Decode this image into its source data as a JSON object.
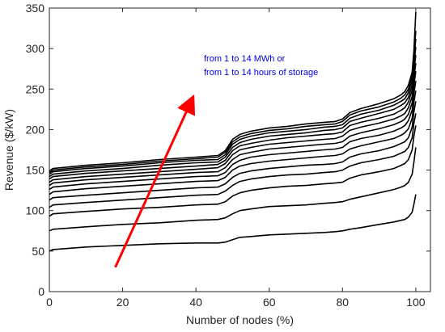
{
  "chart_data": {
    "type": "line",
    "title": "",
    "xlabel": "Number of nodes (%)",
    "ylabel": "Revenue ($/kW)",
    "xlim": [
      0,
      104
    ],
    "ylim": [
      0,
      350
    ],
    "xticks": [
      0,
      20,
      40,
      60,
      80,
      100
    ],
    "yticks": [
      0,
      50,
      100,
      150,
      200,
      250,
      300,
      350
    ],
    "grid": false,
    "legend": "none",
    "line_color": "#000000",
    "x": [
      0,
      1,
      10,
      20,
      30,
      40,
      46,
      48,
      50,
      52,
      55,
      60,
      65,
      70,
      75,
      78,
      80,
      82,
      85,
      90,
      94,
      96,
      97,
      98,
      99,
      99.5,
      100
    ],
    "series": [
      {
        "values": [
          50,
          52,
          55,
          57,
          59,
          60,
          60,
          61,
          64,
          67,
          68,
          70,
          71,
          72,
          73,
          74,
          75,
          77,
          79,
          83,
          86,
          88,
          89,
          92,
          98,
          108,
          120
        ]
      },
      {
        "values": [
          75,
          77,
          80,
          83,
          85,
          88,
          89,
          91,
          96,
          100,
          102,
          105,
          106,
          107,
          109,
          110,
          111,
          114,
          117,
          122,
          126,
          129,
          131,
          135,
          145,
          160,
          178
        ]
      },
      {
        "values": [
          93,
          96,
          99,
          102,
          104,
          107,
          108,
          111,
          118,
          122,
          125,
          128,
          130,
          131,
          133,
          134,
          135,
          140,
          144,
          148,
          152,
          156,
          158,
          163,
          175,
          192,
          205
        ]
      },
      {
        "values": [
          104,
          107,
          110,
          113,
          116,
          119,
          120,
          124,
          131,
          136,
          139,
          142,
          144,
          145,
          147,
          148,
          150,
          155,
          159,
          163,
          167,
          171,
          173,
          178,
          190,
          208,
          220
        ]
      },
      {
        "values": [
          113,
          116,
          119,
          122,
          125,
          128,
          129,
          133,
          141,
          146,
          149,
          152,
          154,
          156,
          157,
          158,
          160,
          166,
          170,
          174,
          179,
          183,
          185,
          190,
          203,
          222,
          235
        ]
      },
      {
        "values": [
          120,
          123,
          127,
          130,
          133,
          136,
          137,
          141,
          150,
          155,
          158,
          161,
          163,
          165,
          167,
          168,
          170,
          176,
          180,
          185,
          189,
          193,
          196,
          201,
          214,
          234,
          248
        ]
      },
      {
        "values": [
          126,
          129,
          133,
          136,
          139,
          142,
          143,
          147,
          157,
          162,
          166,
          169,
          171,
          173,
          175,
          176,
          178,
          185,
          189,
          193,
          198,
          202,
          205,
          211,
          224,
          245,
          260
        ]
      },
      {
        "values": [
          131,
          134,
          138,
          141,
          144,
          147,
          148,
          153,
          163,
          169,
          172,
          176,
          178,
          180,
          182,
          183,
          185,
          192,
          196,
          201,
          206,
          210,
          213,
          219,
          233,
          255,
          272
        ]
      },
      {
        "values": [
          135,
          138,
          142,
          145,
          148,
          151,
          153,
          158,
          169,
          175,
          178,
          182,
          184,
          186,
          188,
          189,
          192,
          199,
          203,
          208,
          213,
          217,
          220,
          227,
          241,
          264,
          282
        ]
      },
      {
        "values": [
          139,
          142,
          146,
          149,
          152,
          155,
          157,
          162,
          174,
          180,
          183,
          187,
          190,
          192,
          194,
          195,
          197,
          205,
          209,
          214,
          219,
          224,
          227,
          234,
          249,
          272,
          292
        ]
      },
      {
        "values": [
          142,
          145,
          149,
          152,
          156,
          159,
          160,
          166,
          178,
          184,
          188,
          192,
          194,
          196,
          199,
          200,
          202,
          210,
          214,
          220,
          225,
          230,
          233,
          240,
          255,
          279,
          302
        ]
      },
      {
        "values": [
          145,
          148,
          152,
          155,
          159,
          162,
          163,
          169,
          182,
          188,
          192,
          196,
          198,
          200,
          203,
          204,
          206,
          214,
          219,
          224,
          230,
          235,
          238,
          246,
          261,
          286,
          312
        ]
      },
      {
        "values": [
          147,
          150,
          154,
          157,
          161,
          164,
          166,
          172,
          185,
          191,
          195,
          199,
          201,
          204,
          206,
          207,
          210,
          218,
          223,
          228,
          234,
          239,
          243,
          250,
          266,
          292,
          322
        ]
      },
      {
        "values": [
          149,
          152,
          156,
          159,
          163,
          166,
          168,
          174,
          188,
          194,
          198,
          202,
          204,
          207,
          209,
          210,
          213,
          221,
          226,
          232,
          238,
          243,
          247,
          255,
          271,
          298,
          345
        ]
      }
    ],
    "annotation": {
      "lines": [
        "from 1 to 14 MWh or",
        "from 1 to 14 hours of storage"
      ],
      "color": "#0000ee"
    },
    "arrow": {
      "from": {
        "x": 18,
        "y": 30
      },
      "to": {
        "x": 39,
        "y": 238
      },
      "color": "#ff0000"
    }
  }
}
